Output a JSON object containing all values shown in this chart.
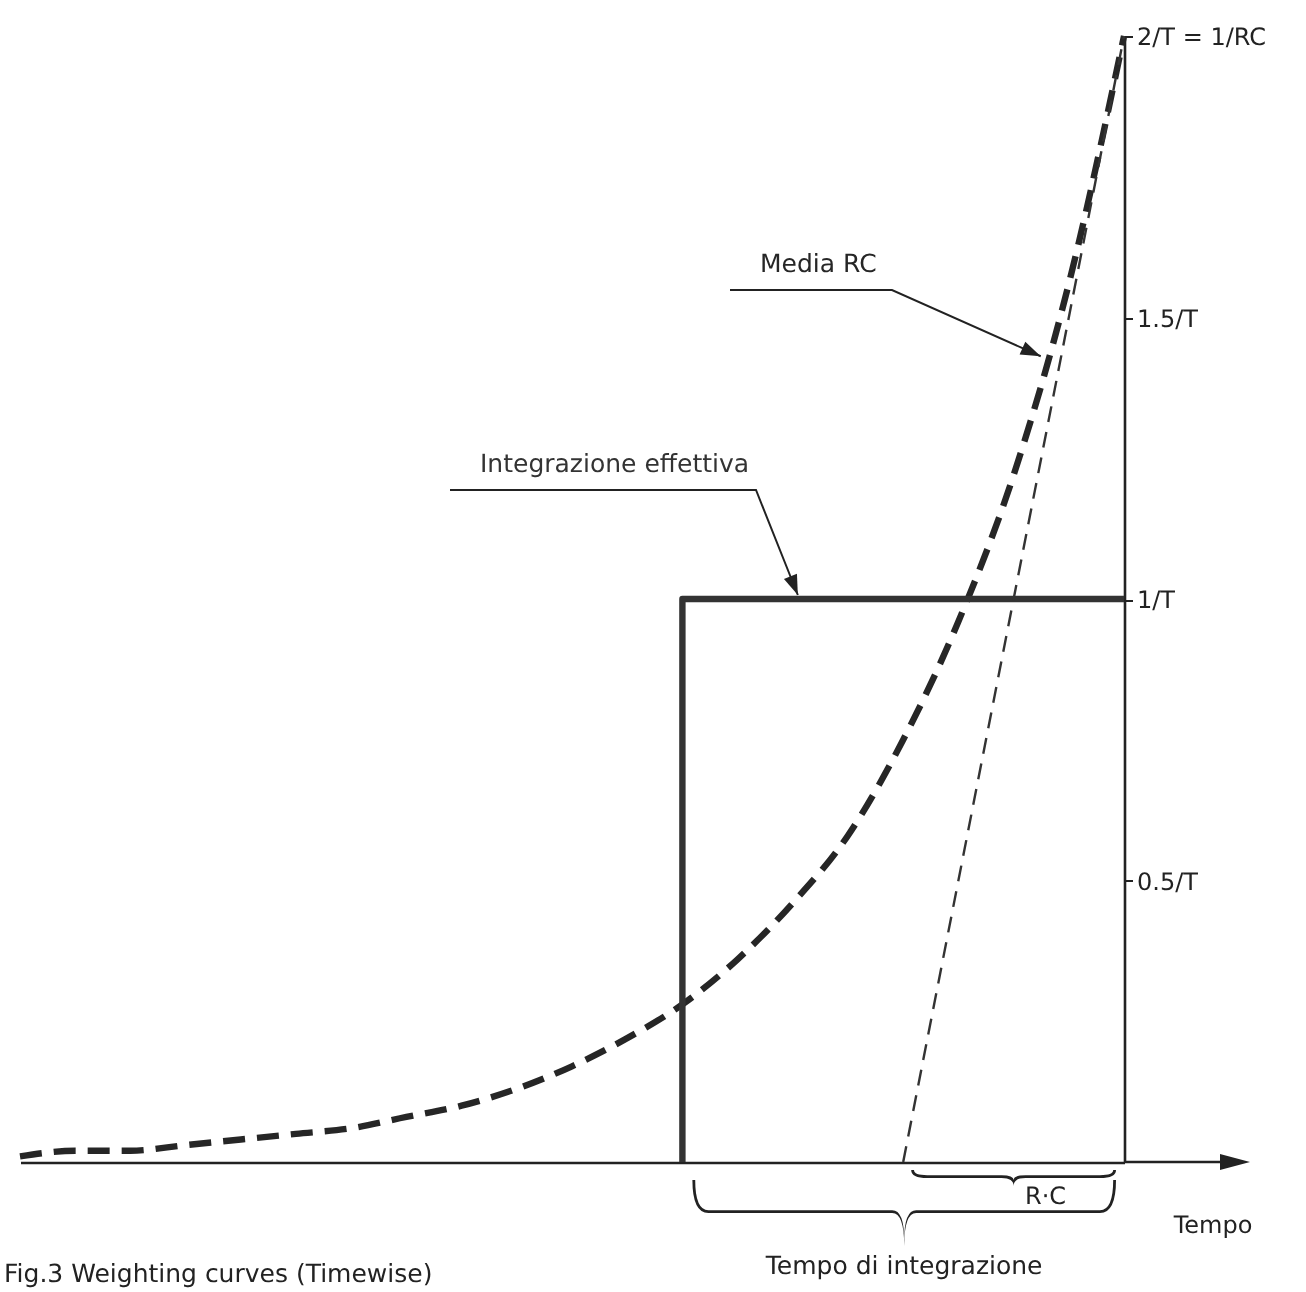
{
  "chart_data": {
    "type": "line",
    "xlabel": "Tempo",
    "categories": [
      null,
      null,
      null,
      null,
      null,
      null,
      null,
      null,
      null,
      null,
      null,
      null,
      null,
      null,
      null,
      null,
      null,
      null,
      null,
      null,
      null
    ],
    "series": [
      {
        "name": "Media RC",
        "color": "#262626",
        "line_style": "dashed",
        "values": [
          0.01,
          0.02,
          0.02,
          0.03,
          0.04,
          0.05,
          0.06,
          0.08,
          0.1,
          0.13,
          0.17,
          0.22,
          0.28,
          0.36,
          0.46,
          0.58,
          0.75,
          0.96,
          1.22,
          1.56,
          2
        ]
      },
      {
        "name": "Integrazione effettiva",
        "type": "step",
        "color": "#333333",
        "line_style": "solid",
        "values": [
          null,
          null,
          null,
          null,
          null,
          null,
          null,
          null,
          null,
          null,
          null,
          null,
          0,
          1,
          1,
          1,
          1,
          1,
          1,
          1,
          1
        ]
      },
      {
        "color": "#333333",
        "line_style": "dashed",
        "values": [
          null,
          null,
          null,
          null,
          null,
          null,
          null,
          null,
          null,
          null,
          null,
          null,
          null,
          null,
          null,
          null,
          0,
          null,
          null,
          null,
          2
        ]
      }
    ],
    "ylim": [
      0,
      2
    ],
    "yticks": [
      {
        "value": 0.5,
        "label": "0.5/T"
      },
      {
        "value": 1,
        "label": "1/T"
      },
      {
        "value": 1.5,
        "label": "1.5/T"
      },
      {
        "value": 2,
        "label": "2/T = 1/RC"
      }
    ],
    "tick_labels": "y",
    "grid": false,
    "annotations": [
      "R·C",
      "Tempo di integrazione",
      "Fig.3 Weighting curves (Timewise)"
    ]
  }
}
